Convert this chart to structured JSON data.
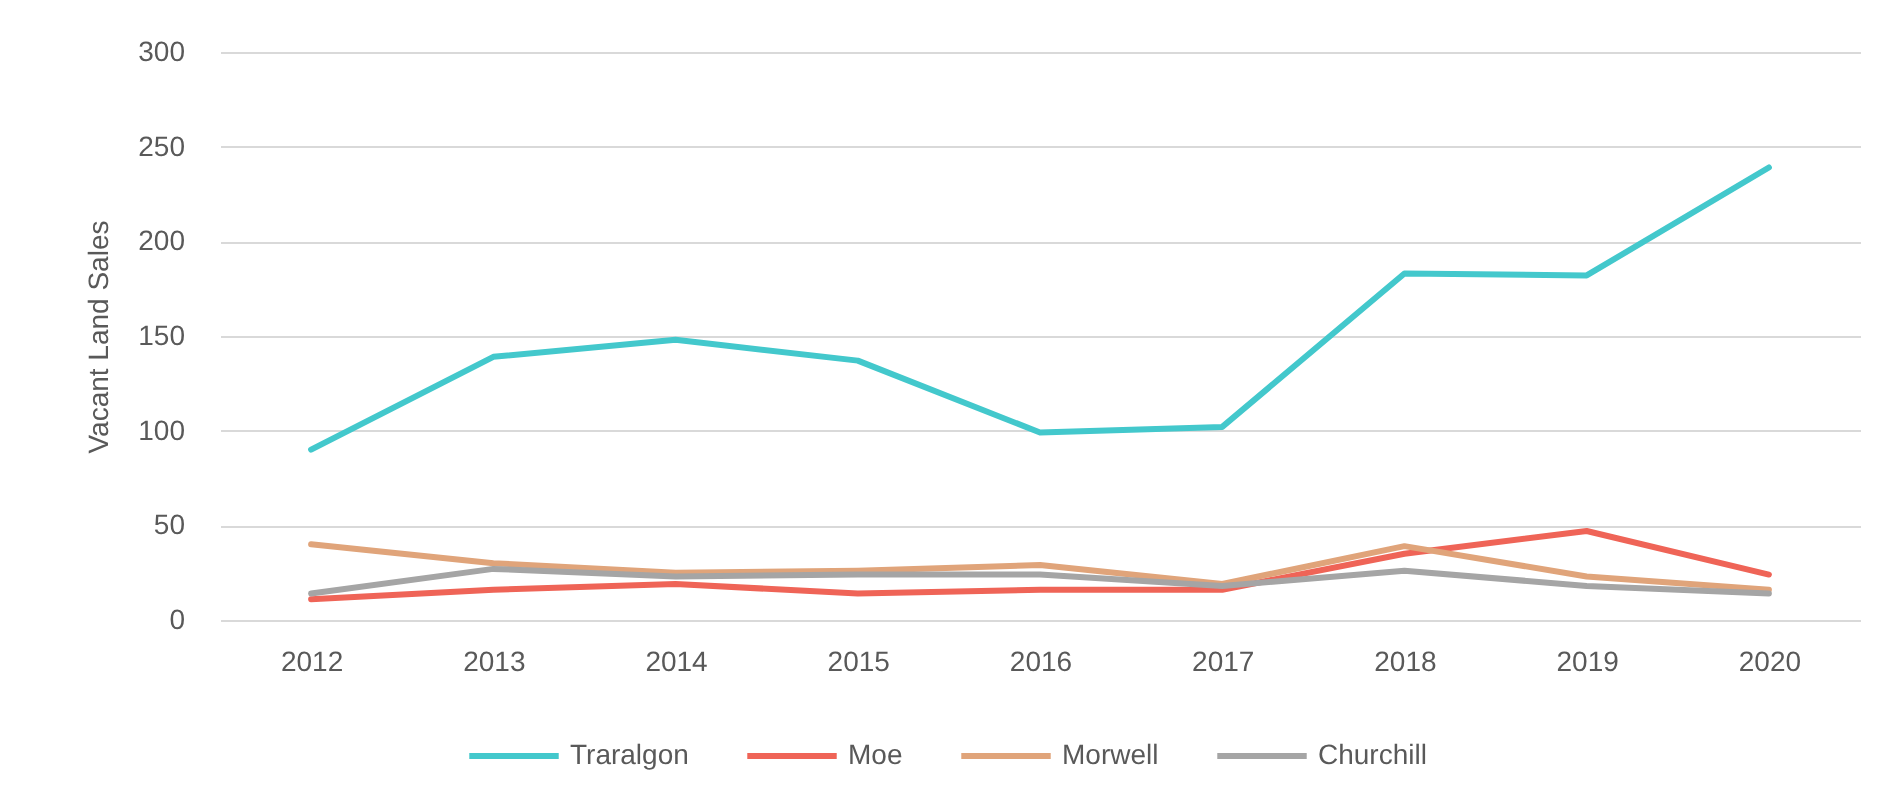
{
  "chart_data": {
    "type": "line",
    "ylabel": "Vacant Land Sales",
    "categories": [
      "2012",
      "2013",
      "2014",
      "2015",
      "2016",
      "2017",
      "2018",
      "2019",
      "2020"
    ],
    "series": [
      {
        "name": "Traralgon",
        "color": "#43c8cc",
        "values": [
          90,
          139,
          148,
          137,
          99,
          102,
          183,
          182,
          239
        ]
      },
      {
        "name": "Moe",
        "color": "#ef6457",
        "values": [
          11,
          16,
          19,
          14,
          16,
          16,
          35,
          47,
          24
        ]
      },
      {
        "name": "Morwell",
        "color": "#e0a47a",
        "values": [
          40,
          30,
          25,
          26,
          29,
          19,
          39,
          23,
          16
        ]
      },
      {
        "name": "Churchill",
        "color": "#a5a5a5",
        "values": [
          14,
          27,
          23,
          24,
          24,
          18,
          26,
          18,
          14
        ]
      }
    ],
    "ylim": [
      0,
      300
    ],
    "yticks": [
      0,
      50,
      100,
      150,
      200,
      250,
      300
    ],
    "grid": "y",
    "legend": "bottom",
    "marker": "none",
    "line_style": "solid"
  }
}
